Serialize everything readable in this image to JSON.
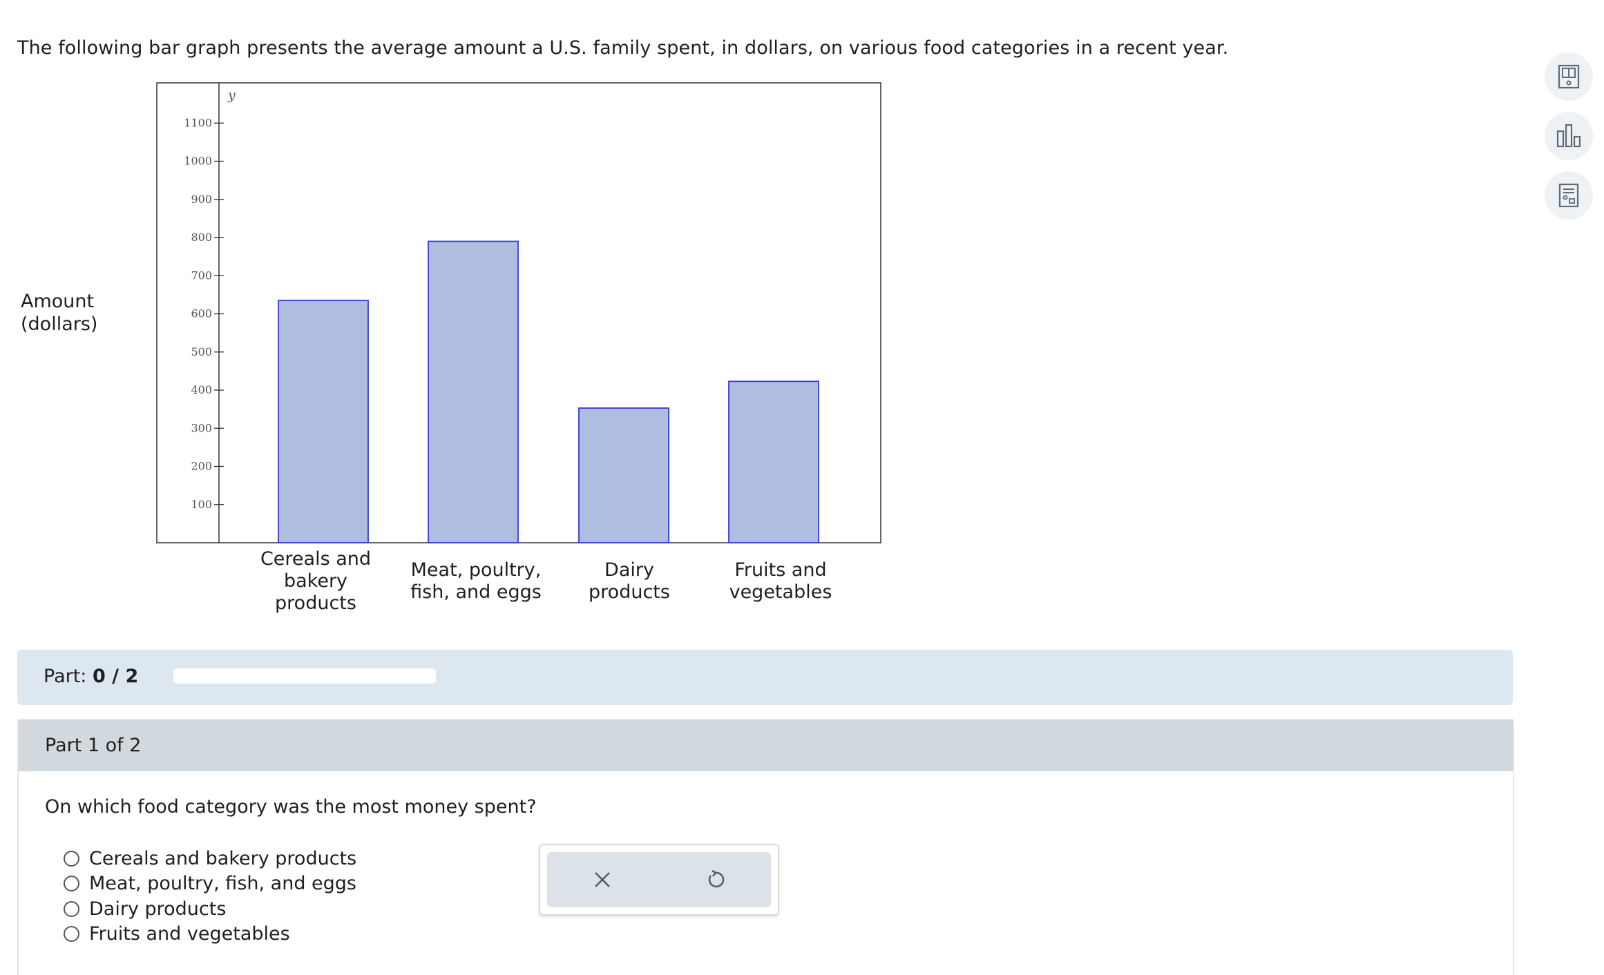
{
  "intro": "The following bar graph presents the average amount a U.S. family spent, in dollars, on various food categories in a recent year.",
  "y_label_line1": "Amount",
  "y_label_line2": "(dollars)",
  "colors": {
    "bar_fill": "#aebde0",
    "bar_stroke": "#3a3ad6",
    "part_bar_bg": "#dce7f0",
    "part_header_bg": "#d1d9de"
  },
  "chart_data": {
    "type": "bar",
    "ylabel": "y",
    "ylim": [
      0,
      1200
    ],
    "yticks": [
      100,
      200,
      300,
      400,
      500,
      600,
      700,
      800,
      900,
      1000,
      1100
    ],
    "categories": [
      [
        "Cereals and",
        "bakery",
        "products"
      ],
      [
        "Meat, poultry,",
        "fish, and eggs"
      ],
      [
        "Dairy",
        "products"
      ],
      [
        "Fruits and",
        "vegetables"
      ]
    ],
    "values": [
      635,
      790,
      353,
      423
    ]
  },
  "toolbar": {
    "icons": [
      "ebook-icon",
      "bar-chart-icon",
      "calculator-icon"
    ]
  },
  "part_progress": {
    "label": "Part:",
    "value": "0 / 2",
    "fraction": 0
  },
  "part": {
    "header": "Part 1 of 2",
    "question": "On which food category was the most money spent?",
    "options": [
      "Cereals and bakery products",
      "Meat, poultry, fish, and eggs",
      "Dairy products",
      "Fruits and vegetables"
    ]
  }
}
